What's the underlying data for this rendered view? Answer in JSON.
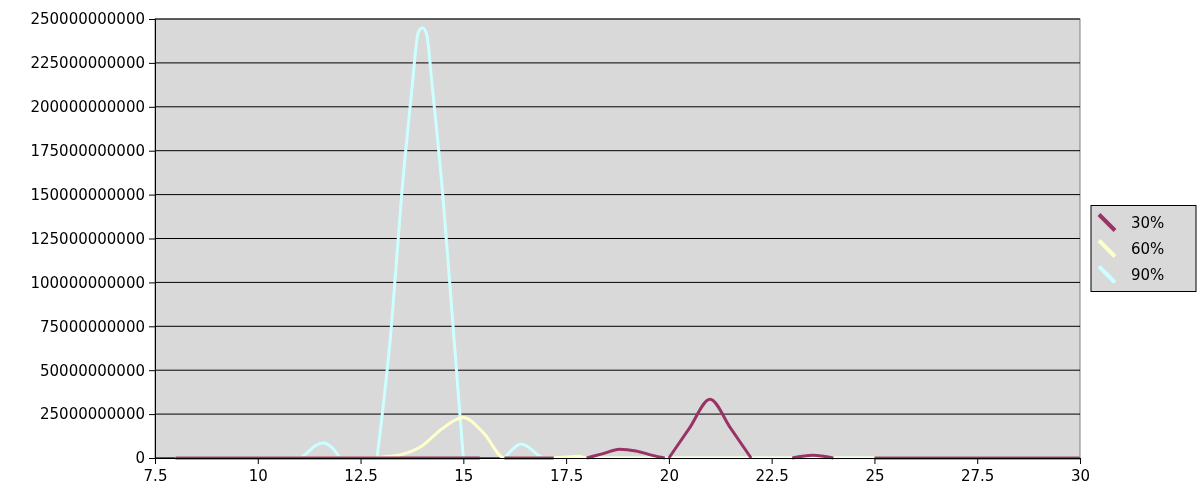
{
  "chart_data": {
    "type": "line",
    "xlim": [
      7.5,
      30
    ],
    "xticks": [
      7.5,
      10,
      12.5,
      15,
      17.5,
      20,
      22.5,
      25,
      27.5,
      30
    ],
    "ylim": [
      0,
      250000000000
    ],
    "yticks": [
      0,
      25000000000,
      50000000000,
      75000000000,
      100000000000,
      125000000000,
      150000000000,
      175000000000,
      200000000000,
      225000000000,
      250000000000
    ],
    "grid": "y",
    "legend": "right",
    "marker": "none",
    "line_style": "solid",
    "series": [
      {
        "name": "30%",
        "color": "#993366",
        "x": [
          8,
          10,
          12,
          14,
          15.4,
          15.7,
          16,
          17.2,
          17.6,
          18,
          18.4,
          18.8,
          19.2,
          19.6,
          19.9,
          19.95,
          20,
          20.5,
          21,
          21.5,
          22,
          22.5,
          23,
          23.5,
          24,
          24.5,
          25,
          27.5,
          30
        ],
        "values": [
          0,
          0,
          0,
          0,
          0,
          null,
          0,
          0,
          null,
          0,
          2500000000,
          5000000000,
          4000000000,
          1500000000,
          0,
          null,
          0,
          17000000000,
          33500000000,
          17000000000,
          0,
          null,
          0,
          1500000000,
          0,
          null,
          0,
          0,
          0
        ]
      },
      {
        "name": "60%",
        "color": "#ffffcc",
        "x": [
          8,
          10,
          12,
          12.5,
          13,
          13.5,
          14,
          14.5,
          15,
          15.5,
          16,
          17,
          17.5,
          17.8,
          18,
          19,
          20,
          22,
          24,
          26,
          28,
          30
        ],
        "values": [
          0,
          0,
          0,
          0,
          500000000,
          2000000000,
          7000000000,
          17000000000,
          23000000000,
          14000000000,
          0,
          0,
          500000000,
          1000000000,
          0,
          0,
          0,
          0,
          0,
          0,
          0,
          0
        ]
      },
      {
        "name": "90%",
        "color": "#ccffff",
        "x": [
          8,
          9,
          10,
          11,
          11.2,
          11.4,
          11.6,
          11.8,
          12,
          12.5,
          12.9,
          13.25,
          13.5,
          13.75,
          13.9,
          14,
          14.1,
          14.25,
          14.5,
          14.75,
          15,
          15.5,
          16,
          16.2,
          16.4,
          16.6,
          16.8,
          17,
          18,
          19,
          20,
          22,
          24,
          26,
          28,
          30
        ],
        "values": [
          0,
          0,
          0,
          0,
          3000000000,
          7000000000,
          8500000000,
          6000000000,
          0,
          null,
          0,
          75000000000,
          150000000000,
          210000000000,
          242000000000,
          245000000000,
          242000000000,
          210000000000,
          150000000000,
          75000000000,
          0,
          null,
          0,
          5000000000,
          8000000000,
          6000000000,
          2000000000,
          0,
          0,
          0,
          0,
          0,
          0,
          0,
          0,
          0
        ]
      }
    ]
  }
}
